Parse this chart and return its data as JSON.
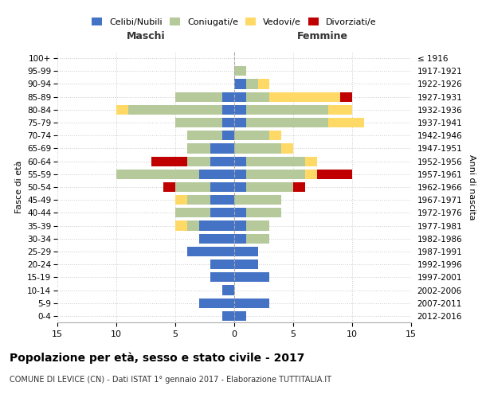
{
  "age_groups": [
    "0-4",
    "5-9",
    "10-14",
    "15-19",
    "20-24",
    "25-29",
    "30-34",
    "35-39",
    "40-44",
    "45-49",
    "50-54",
    "55-59",
    "60-64",
    "65-69",
    "70-74",
    "75-79",
    "80-84",
    "85-89",
    "90-94",
    "95-99",
    "100+"
  ],
  "birth_years": [
    "2012-2016",
    "2007-2011",
    "2002-2006",
    "1997-2001",
    "1992-1996",
    "1987-1991",
    "1982-1986",
    "1977-1981",
    "1972-1976",
    "1967-1971",
    "1962-1966",
    "1957-1961",
    "1952-1956",
    "1947-1951",
    "1942-1946",
    "1937-1941",
    "1932-1936",
    "1927-1931",
    "1922-1926",
    "1917-1921",
    "≤ 1916"
  ],
  "colors": {
    "celibi": "#4472C4",
    "coniugati": "#B5C99A",
    "vedovi": "#FFD966",
    "divorziati": "#C00000"
  },
  "maschi": {
    "celibi": [
      1,
      3,
      1,
      2,
      2,
      4,
      3,
      3,
      2,
      2,
      2,
      3,
      2,
      2,
      1,
      1,
      1,
      1,
      0,
      0,
      0
    ],
    "coniugati": [
      0,
      0,
      0,
      0,
      0,
      0,
      0,
      1,
      3,
      2,
      3,
      7,
      2,
      2,
      3,
      4,
      8,
      4,
      0,
      0,
      0
    ],
    "vedovi": [
      0,
      0,
      0,
      0,
      0,
      0,
      0,
      1,
      0,
      1,
      0,
      0,
      0,
      0,
      0,
      0,
      1,
      0,
      0,
      0,
      0
    ],
    "divorziati": [
      0,
      0,
      0,
      0,
      0,
      0,
      0,
      0,
      0,
      0,
      1,
      0,
      3,
      0,
      0,
      0,
      0,
      0,
      0,
      0,
      0
    ]
  },
  "femmine": {
    "nubili": [
      1,
      3,
      0,
      3,
      2,
      2,
      1,
      1,
      1,
      0,
      1,
      1,
      1,
      0,
      0,
      1,
      1,
      1,
      1,
      0,
      0
    ],
    "coniugate": [
      0,
      0,
      0,
      0,
      0,
      0,
      2,
      2,
      3,
      4,
      4,
      5,
      5,
      4,
      3,
      7,
      7,
      2,
      1,
      1,
      0
    ],
    "vedove": [
      0,
      0,
      0,
      0,
      0,
      0,
      0,
      0,
      0,
      0,
      0,
      1,
      1,
      1,
      1,
      3,
      2,
      6,
      1,
      0,
      0
    ],
    "divorziate": [
      0,
      0,
      0,
      0,
      0,
      0,
      0,
      0,
      0,
      0,
      1,
      3,
      0,
      0,
      0,
      0,
      0,
      1,
      0,
      0,
      0
    ]
  },
  "xlim": 15,
  "title": "Popolazione per età, sesso e stato civile - 2017",
  "subtitle": "COMUNE DI LEVICE (CN) - Dati ISTAT 1° gennaio 2017 - Elaborazione TUTTITALIA.IT",
  "xlabel_left": "Maschi",
  "xlabel_right": "Femmine",
  "ylabel": "Fasce di età",
  "ylabel_right": "Anni di nascita"
}
